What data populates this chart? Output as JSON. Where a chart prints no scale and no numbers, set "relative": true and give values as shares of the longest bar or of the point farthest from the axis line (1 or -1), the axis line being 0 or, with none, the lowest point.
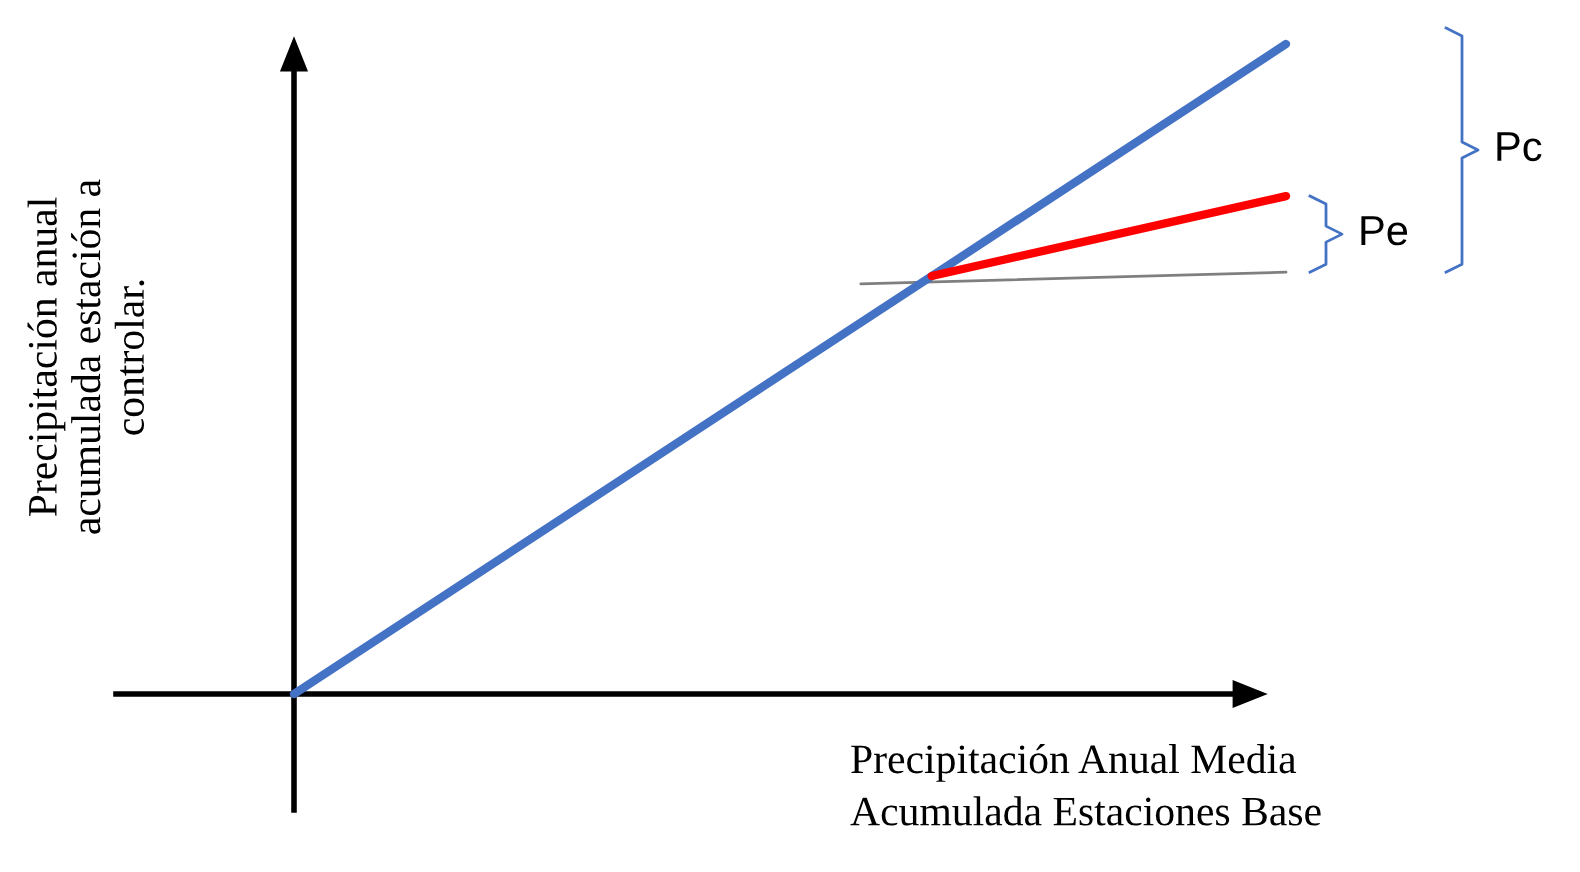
{
  "chart_data": {
    "type": "line",
    "relative": true,
    "xlabel": "Precipitación Anual Media\nAcumulada Estaciones Base",
    "ylabel": "Precipitación anual\nacumulada estación a\ncontrolar.",
    "marker": "none",
    "line_style": "solid",
    "categories": [
      null,
      null,
      null,
      null,
      null,
      null,
      null,
      null,
      null,
      null,
      null,
      null,
      null,
      null,
      null
    ],
    "series": [
      {
        "color": "#4472c4",
        "values": [
          0,
          null,
          null,
          null,
          null,
          null,
          null,
          null,
          null,
          null,
          null,
          null,
          null,
          null,
          1
        ]
      },
      {
        "color": "#7f7f7f",
        "values": [
          null,
          null,
          null,
          null,
          null,
          null,
          null,
          null,
          0.631,
          null,
          null,
          null,
          null,
          null,
          0.649
        ]
      },
      {
        "color": "#ff0000",
        "values": [
          null,
          null,
          null,
          null,
          null,
          null,
          null,
          null,
          null,
          0.643,
          null,
          null,
          null,
          null,
          0.766
        ]
      }
    ],
    "annotations": [
      "Pc",
      "Pe"
    ]
  }
}
